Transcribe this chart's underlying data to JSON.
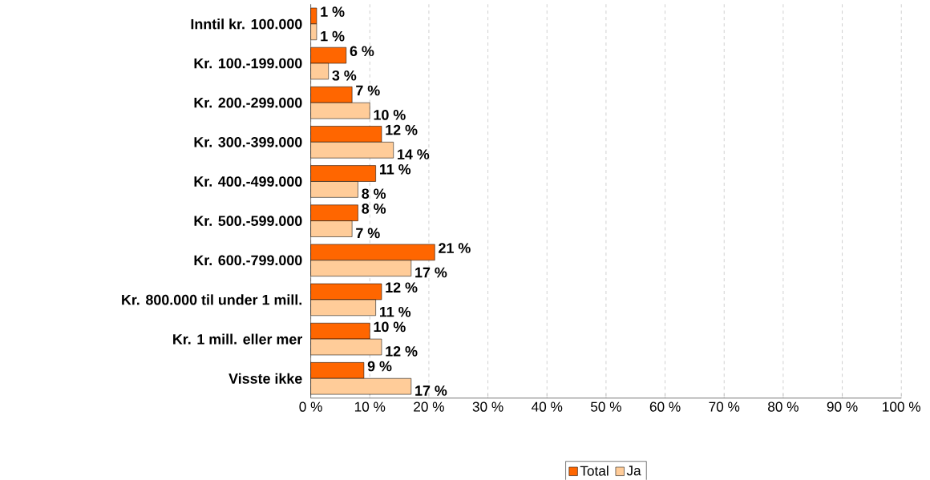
{
  "chart_data": {
    "type": "bar",
    "orientation": "horizontal",
    "categories": [
      "Inntil kr. 100.000",
      "Kr. 100.-199.000",
      "Kr. 200.-299.000",
      "Kr. 300.-399.000",
      "Kr. 400.-499.000",
      "Kr. 500.-599.000",
      "Kr. 600.-799.000",
      "Kr. 800.000 til under 1 mill.",
      "Kr. 1 mill. eller mer",
      "Visste ikke"
    ],
    "series": [
      {
        "name": "Total",
        "color": "#ff6600",
        "values": [
          1,
          6,
          7,
          12,
          11,
          8,
          21,
          12,
          10,
          9
        ],
        "value_labels": [
          "1 %",
          "6 %",
          "7 %",
          "12 %",
          "11 %",
          "8 %",
          "21 %",
          "12 %",
          "10 %",
          "9 %"
        ]
      },
      {
        "name": "Ja",
        "color": "#ffcc99",
        "values": [
          1,
          3,
          10,
          14,
          8,
          7,
          17,
          11,
          12,
          17
        ],
        "value_labels": [
          "1 %",
          "3 %",
          "10 %",
          "14 %",
          "8 %",
          "7 %",
          "17 %",
          "11 %",
          "12 %",
          "17 %"
        ]
      }
    ],
    "xlim": [
      0,
      100
    ],
    "xticks": [
      {
        "value": 0,
        "label": "0 %"
      },
      {
        "value": 10,
        "label": "10 %"
      },
      {
        "value": 20,
        "label": "20 %"
      },
      {
        "value": 30,
        "label": "30 %"
      },
      {
        "value": 40,
        "label": "40 %"
      },
      {
        "value": 50,
        "label": "50 %"
      },
      {
        "value": 60,
        "label": "60 %"
      },
      {
        "value": 70,
        "label": "70 %"
      },
      {
        "value": 80,
        "label": "80 %"
      },
      {
        "value": 90,
        "label": "90 %"
      },
      {
        "value": 100,
        "label": "100 %"
      }
    ],
    "grid": "x",
    "legend": "bottom"
  }
}
